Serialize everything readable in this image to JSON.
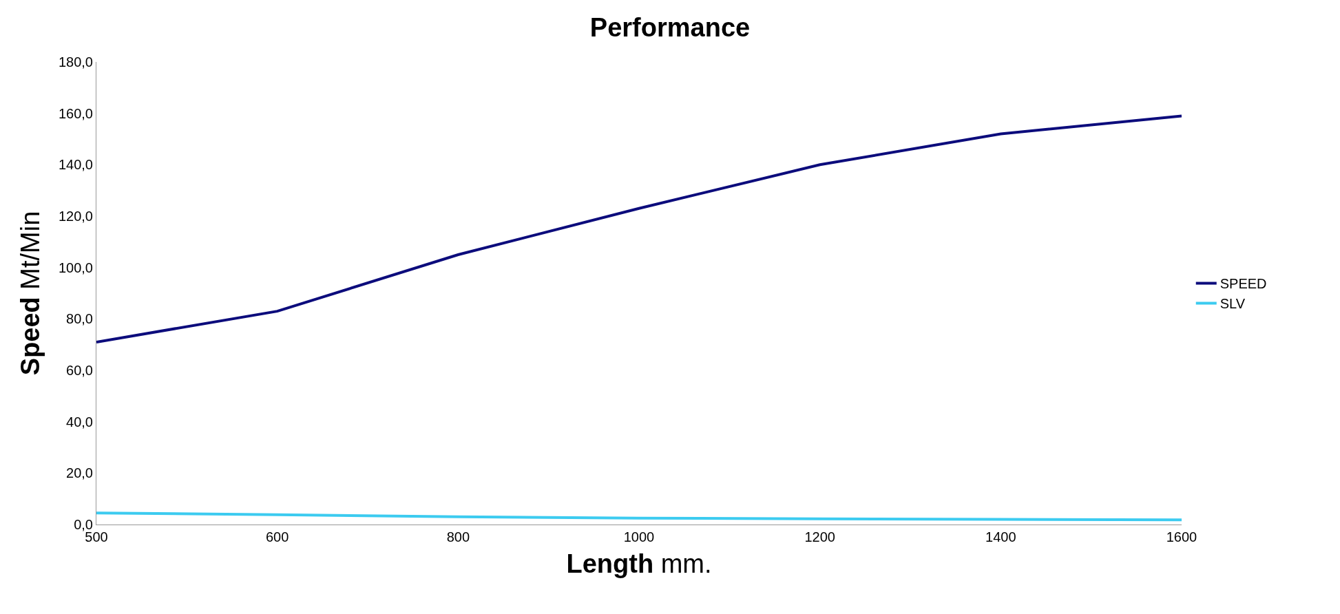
{
  "chart_data": {
    "type": "line",
    "title": "Performance",
    "xlabel": "Length mm.",
    "ylabel": "Speed Mt/Min",
    "categories": [
      "500",
      "600",
      "800",
      "1000",
      "1200",
      "1400",
      "1600"
    ],
    "series": [
      {
        "name": "SPEED",
        "color": "#0c0c7c",
        "values": [
          71,
          83,
          105,
          123,
          140,
          152,
          159
        ]
      },
      {
        "name": "SLV",
        "color": "#3ccbf0",
        "values": [
          4.5,
          3.8,
          3,
          2.5,
          2.2,
          2,
          1.8
        ]
      }
    ],
    "ylim": [
      0,
      180
    ],
    "yticks": [
      {
        "value": 0,
        "label": "0,0"
      },
      {
        "value": 20,
        "label": "20,0"
      },
      {
        "value": 40,
        "label": "40,0"
      },
      {
        "value": 60,
        "label": "60,0"
      },
      {
        "value": 80,
        "label": "80,0"
      },
      {
        "value": 100,
        "label": "100,0"
      },
      {
        "value": 120,
        "label": "120,0"
      },
      {
        "value": 140,
        "label": "140,0"
      },
      {
        "value": 160,
        "label": "160,0"
      },
      {
        "value": 180,
        "label": "180,0"
      }
    ],
    "legend": "right",
    "marker": "none",
    "line_style": "solid"
  }
}
